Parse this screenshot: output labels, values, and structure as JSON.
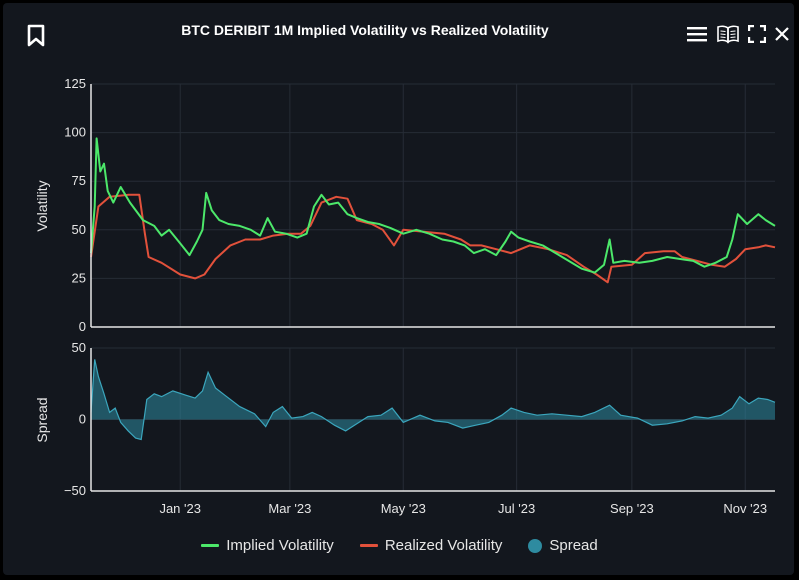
{
  "colors": {
    "background": "#13171e",
    "grid": "#262c36",
    "axis": "#e6e6e6",
    "implied": "#4ce86a",
    "realized": "#e2513b",
    "spread": "#2e8ba0"
  },
  "icons": {
    "bookmark": "bookmark-icon",
    "menu": "hamburger-menu-icon",
    "book": "open-book-icon",
    "fullscreen": "fullscreen-icon",
    "close": "close-icon"
  },
  "chart_data": [
    {
      "id": "volatility",
      "type": "line",
      "title": "BTC DERIBIT 1M Implied Volatility vs Realized Volatility",
      "ylabel": "Volatility",
      "ylim": [
        0,
        125
      ],
      "yticks": [
        "0",
        "25",
        "50",
        "75",
        "100",
        "125"
      ],
      "x_start": "2022-11-14",
      "x_end": "2023-11-17",
      "xticks": [
        {
          "date": "2023-01-01",
          "label": "Jan '23"
        },
        {
          "date": "2023-03-01",
          "label": "Mar '23"
        },
        {
          "date": "2023-05-01",
          "label": "May '23"
        },
        {
          "date": "2023-07-01",
          "label": "Jul '23"
        },
        {
          "date": "2023-09-01",
          "label": "Sep '23"
        },
        {
          "date": "2023-11-01",
          "label": "Nov '23"
        }
      ],
      "series": [
        {
          "name": "Implied Volatility",
          "color": "#4ce86a",
          "points": [
            {
              "x": "2022-11-14",
              "y": 38
            },
            {
              "x": "2022-11-16",
              "y": 62
            },
            {
              "x": "2022-11-17",
              "y": 97
            },
            {
              "x": "2022-11-19",
              "y": 80
            },
            {
              "x": "2022-11-21",
              "y": 84
            },
            {
              "x": "2022-11-23",
              "y": 70
            },
            {
              "x": "2022-11-26",
              "y": 64
            },
            {
              "x": "2022-11-30",
              "y": 72
            },
            {
              "x": "2022-12-05",
              "y": 64
            },
            {
              "x": "2022-12-12",
              "y": 55
            },
            {
              "x": "2022-12-18",
              "y": 52
            },
            {
              "x": "2022-12-22",
              "y": 47
            },
            {
              "x": "2022-12-26",
              "y": 50
            },
            {
              "x": "2023-01-01",
              "y": 43
            },
            {
              "x": "2023-01-06",
              "y": 37
            },
            {
              "x": "2023-01-10",
              "y": 44
            },
            {
              "x": "2023-01-13",
              "y": 50
            },
            {
              "x": "2023-01-15",
              "y": 69
            },
            {
              "x": "2023-01-18",
              "y": 60
            },
            {
              "x": "2023-01-22",
              "y": 55
            },
            {
              "x": "2023-01-27",
              "y": 53
            },
            {
              "x": "2023-02-02",
              "y": 52
            },
            {
              "x": "2023-02-08",
              "y": 50
            },
            {
              "x": "2023-02-13",
              "y": 47
            },
            {
              "x": "2023-02-17",
              "y": 56
            },
            {
              "x": "2023-02-21",
              "y": 49
            },
            {
              "x": "2023-02-27",
              "y": 48
            },
            {
              "x": "2023-03-05",
              "y": 46
            },
            {
              "x": "2023-03-10",
              "y": 48
            },
            {
              "x": "2023-03-14",
              "y": 62
            },
            {
              "x": "2023-03-18",
              "y": 68
            },
            {
              "x": "2023-03-22",
              "y": 63
            },
            {
              "x": "2023-03-27",
              "y": 64
            },
            {
              "x": "2023-04-01",
              "y": 58
            },
            {
              "x": "2023-04-06",
              "y": 56
            },
            {
              "x": "2023-04-12",
              "y": 54
            },
            {
              "x": "2023-04-18",
              "y": 53
            },
            {
              "x": "2023-04-24",
              "y": 51
            },
            {
              "x": "2023-05-01",
              "y": 48
            },
            {
              "x": "2023-05-08",
              "y": 50
            },
            {
              "x": "2023-05-15",
              "y": 48
            },
            {
              "x": "2023-05-22",
              "y": 45
            },
            {
              "x": "2023-05-28",
              "y": 44
            },
            {
              "x": "2023-06-03",
              "y": 42
            },
            {
              "x": "2023-06-08",
              "y": 38
            },
            {
              "x": "2023-06-14",
              "y": 40
            },
            {
              "x": "2023-06-20",
              "y": 37
            },
            {
              "x": "2023-06-25",
              "y": 44
            },
            {
              "x": "2023-06-28",
              "y": 49
            },
            {
              "x": "2023-07-02",
              "y": 46
            },
            {
              "x": "2023-07-08",
              "y": 44
            },
            {
              "x": "2023-07-15",
              "y": 42
            },
            {
              "x": "2023-07-22",
              "y": 38
            },
            {
              "x": "2023-07-29",
              "y": 34
            },
            {
              "x": "2023-08-05",
              "y": 30
            },
            {
              "x": "2023-08-12",
              "y": 28
            },
            {
              "x": "2023-08-17",
              "y": 32
            },
            {
              "x": "2023-08-20",
              "y": 45
            },
            {
              "x": "2023-08-22",
              "y": 33
            },
            {
              "x": "2023-08-28",
              "y": 34
            },
            {
              "x": "2023-09-05",
              "y": 33
            },
            {
              "x": "2023-09-12",
              "y": 34
            },
            {
              "x": "2023-09-20",
              "y": 36
            },
            {
              "x": "2023-09-27",
              "y": 35
            },
            {
              "x": "2023-10-04",
              "y": 34
            },
            {
              "x": "2023-10-10",
              "y": 31
            },
            {
              "x": "2023-10-16",
              "y": 33
            },
            {
              "x": "2023-10-22",
              "y": 36
            },
            {
              "x": "2023-10-25",
              "y": 45
            },
            {
              "x": "2023-10-28",
              "y": 58
            },
            {
              "x": "2023-11-02",
              "y": 53
            },
            {
              "x": "2023-11-08",
              "y": 58
            },
            {
              "x": "2023-11-12",
              "y": 55
            },
            {
              "x": "2023-11-17",
              "y": 52
            }
          ]
        },
        {
          "name": "Realized Volatility",
          "color": "#e2513b",
          "points": [
            {
              "x": "2022-11-14",
              "y": 36
            },
            {
              "x": "2022-11-18",
              "y": 62
            },
            {
              "x": "2022-11-24",
              "y": 67
            },
            {
              "x": "2022-12-04",
              "y": 68
            },
            {
              "x": "2022-12-10",
              "y": 68
            },
            {
              "x": "2022-12-13",
              "y": 48
            },
            {
              "x": "2022-12-15",
              "y": 36
            },
            {
              "x": "2022-12-22",
              "y": 33
            },
            {
              "x": "2023-01-01",
              "y": 27
            },
            {
              "x": "2023-01-09",
              "y": 25
            },
            {
              "x": "2023-01-14",
              "y": 27
            },
            {
              "x": "2023-01-20",
              "y": 35
            },
            {
              "x": "2023-01-28",
              "y": 42
            },
            {
              "x": "2023-02-05",
              "y": 45
            },
            {
              "x": "2023-02-13",
              "y": 45
            },
            {
              "x": "2023-02-20",
              "y": 47
            },
            {
              "x": "2023-02-28",
              "y": 48
            },
            {
              "x": "2023-03-07",
              "y": 48
            },
            {
              "x": "2023-03-12",
              "y": 52
            },
            {
              "x": "2023-03-18",
              "y": 64
            },
            {
              "x": "2023-03-26",
              "y": 67
            },
            {
              "x": "2023-04-01",
              "y": 66
            },
            {
              "x": "2023-04-06",
              "y": 55
            },
            {
              "x": "2023-04-14",
              "y": 53
            },
            {
              "x": "2023-04-20",
              "y": 50
            },
            {
              "x": "2023-04-26",
              "y": 42
            },
            {
              "x": "2023-05-01",
              "y": 50
            },
            {
              "x": "2023-05-12",
              "y": 49
            },
            {
              "x": "2023-05-23",
              "y": 48
            },
            {
              "x": "2023-06-01",
              "y": 45
            },
            {
              "x": "2023-06-06",
              "y": 42
            },
            {
              "x": "2023-06-12",
              "y": 42
            },
            {
              "x": "2023-06-20",
              "y": 40
            },
            {
              "x": "2023-06-28",
              "y": 38
            },
            {
              "x": "2023-07-08",
              "y": 42
            },
            {
              "x": "2023-07-18",
              "y": 40
            },
            {
              "x": "2023-07-28",
              "y": 37
            },
            {
              "x": "2023-08-06",
              "y": 31
            },
            {
              "x": "2023-08-13",
              "y": 27
            },
            {
              "x": "2023-08-19",
              "y": 23
            },
            {
              "x": "2023-08-21",
              "y": 31
            },
            {
              "x": "2023-09-01",
              "y": 32
            },
            {
              "x": "2023-09-08",
              "y": 38
            },
            {
              "x": "2023-09-18",
              "y": 39
            },
            {
              "x": "2023-09-24",
              "y": 39
            },
            {
              "x": "2023-09-28",
              "y": 36
            },
            {
              "x": "2023-10-06",
              "y": 34
            },
            {
              "x": "2023-10-14",
              "y": 32
            },
            {
              "x": "2023-10-21",
              "y": 31
            },
            {
              "x": "2023-10-27",
              "y": 35
            },
            {
              "x": "2023-11-01",
              "y": 40
            },
            {
              "x": "2023-11-08",
              "y": 41
            },
            {
              "x": "2023-11-12",
              "y": 42
            },
            {
              "x": "2023-11-17",
              "y": 41
            }
          ]
        }
      ]
    },
    {
      "id": "spread",
      "type": "area",
      "ylabel": "Spread",
      "ylim": [
        -50,
        50
      ],
      "yticks": [
        "−50",
        "0",
        "50"
      ],
      "x_start": "2022-11-14",
      "x_end": "2023-11-17",
      "series": [
        {
          "name": "Spread",
          "color": "#2e8ba0",
          "points": [
            {
              "x": "2022-11-14",
              "y": 5
            },
            {
              "x": "2022-11-16",
              "y": 42
            },
            {
              "x": "2022-11-18",
              "y": 30
            },
            {
              "x": "2022-11-21",
              "y": 18
            },
            {
              "x": "2022-11-24",
              "y": 5
            },
            {
              "x": "2022-11-27",
              "y": 8
            },
            {
              "x": "2022-11-30",
              "y": -2
            },
            {
              "x": "2022-12-04",
              "y": -8
            },
            {
              "x": "2022-12-08",
              "y": -13
            },
            {
              "x": "2022-12-11",
              "y": -14
            },
            {
              "x": "2022-12-14",
              "y": 14
            },
            {
              "x": "2022-12-18",
              "y": 18
            },
            {
              "x": "2022-12-22",
              "y": 16
            },
            {
              "x": "2022-12-28",
              "y": 20
            },
            {
              "x": "2023-01-04",
              "y": 17
            },
            {
              "x": "2023-01-09",
              "y": 15
            },
            {
              "x": "2023-01-13",
              "y": 20
            },
            {
              "x": "2023-01-16",
              "y": 33
            },
            {
              "x": "2023-01-20",
              "y": 22
            },
            {
              "x": "2023-01-25",
              "y": 17
            },
            {
              "x": "2023-02-02",
              "y": 9
            },
            {
              "x": "2023-02-10",
              "y": 4
            },
            {
              "x": "2023-02-16",
              "y": -5
            },
            {
              "x": "2023-02-20",
              "y": 5
            },
            {
              "x": "2023-02-25",
              "y": 9
            },
            {
              "x": "2023-03-02",
              "y": 1
            },
            {
              "x": "2023-03-08",
              "y": 2
            },
            {
              "x": "2023-03-13",
              "y": 5
            },
            {
              "x": "2023-03-18",
              "y": 2
            },
            {
              "x": "2023-03-25",
              "y": -4
            },
            {
              "x": "2023-03-31",
              "y": -8
            },
            {
              "x": "2023-04-06",
              "y": -3
            },
            {
              "x": "2023-04-12",
              "y": 2
            },
            {
              "x": "2023-04-19",
              "y": 3
            },
            {
              "x": "2023-04-25",
              "y": 8
            },
            {
              "x": "2023-05-01",
              "y": -2
            },
            {
              "x": "2023-05-10",
              "y": 3
            },
            {
              "x": "2023-05-18",
              "y": -1
            },
            {
              "x": "2023-05-25",
              "y": -2
            },
            {
              "x": "2023-06-02",
              "y": -6
            },
            {
              "x": "2023-06-09",
              "y": -4
            },
            {
              "x": "2023-06-16",
              "y": -2
            },
            {
              "x": "2023-06-23",
              "y": 3
            },
            {
              "x": "2023-06-28",
              "y": 8
            },
            {
              "x": "2023-07-05",
              "y": 5
            },
            {
              "x": "2023-07-12",
              "y": 3
            },
            {
              "x": "2023-07-20",
              "y": 4
            },
            {
              "x": "2023-07-28",
              "y": 3
            },
            {
              "x": "2023-08-05",
              "y": 2
            },
            {
              "x": "2023-08-12",
              "y": 5
            },
            {
              "x": "2023-08-20",
              "y": 10
            },
            {
              "x": "2023-08-26",
              "y": 3
            },
            {
              "x": "2023-09-04",
              "y": 1
            },
            {
              "x": "2023-09-12",
              "y": -4
            },
            {
              "x": "2023-09-20",
              "y": -3
            },
            {
              "x": "2023-09-28",
              "y": -1
            },
            {
              "x": "2023-10-05",
              "y": 2
            },
            {
              "x": "2023-10-12",
              "y": 1
            },
            {
              "x": "2023-10-19",
              "y": 3
            },
            {
              "x": "2023-10-25",
              "y": 8
            },
            {
              "x": "2023-10-29",
              "y": 16
            },
            {
              "x": "2023-11-03",
              "y": 11
            },
            {
              "x": "2023-11-08",
              "y": 15
            },
            {
              "x": "2023-11-13",
              "y": 14
            },
            {
              "x": "2023-11-17",
              "y": 12
            }
          ]
        }
      ]
    }
  ],
  "legend": [
    {
      "label": "Implied Volatility",
      "color": "#4ce86a",
      "shape": "line"
    },
    {
      "label": "Realized Volatility",
      "color": "#e2513b",
      "shape": "line"
    },
    {
      "label": "Spread",
      "color": "#2e8ba0",
      "shape": "dot"
    }
  ]
}
